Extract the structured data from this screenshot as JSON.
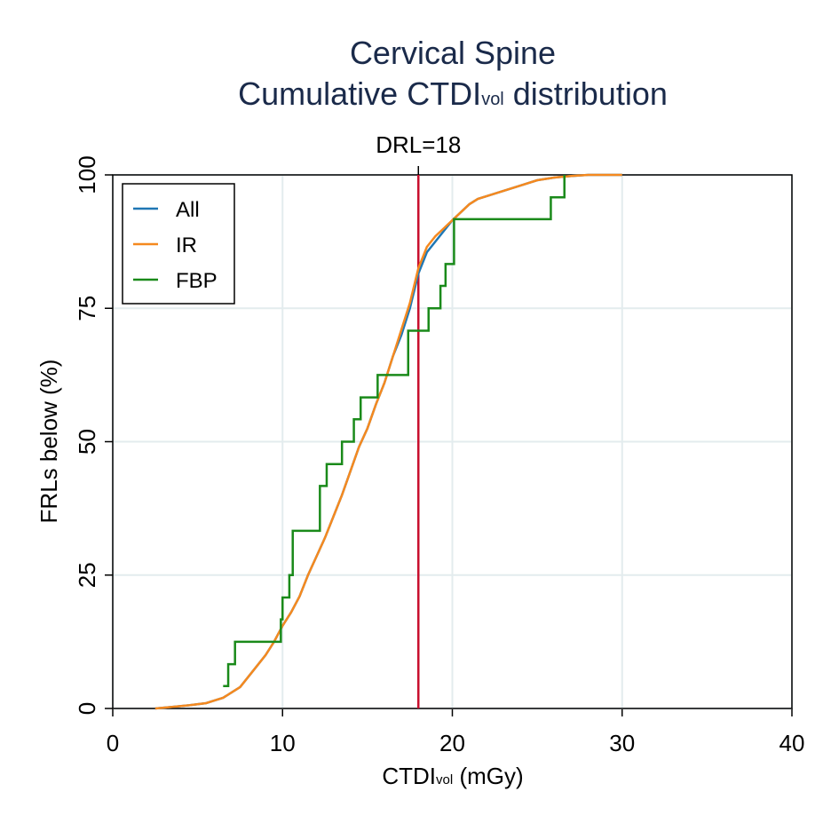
{
  "chart_data": {
    "type": "line",
    "title": [
      "Cervical Spine",
      {
        "main": "Cumulative CTDI",
        "sub": "vol",
        "rest": " distribution"
      }
    ],
    "x_label": {
      "main": "CTDI",
      "sub": "vol",
      "rest": " (mGy)"
    },
    "y_label": "FRLs below (%)",
    "xlim": [
      0,
      40
    ],
    "xticks": [
      0,
      10,
      20,
      30,
      40
    ],
    "ylim": [
      0,
      100
    ],
    "yticks": [
      0,
      25,
      50,
      75,
      100
    ],
    "grid": true,
    "legend": "top-left",
    "reference_line": {
      "x": 18,
      "label": "DRL=18",
      "color": "#c8102e"
    },
    "series": [
      {
        "name": "All",
        "color": "#1f77b4",
        "step": false,
        "x": [
          2.5,
          3.5,
          4.5,
          5.5,
          6,
          6.5,
          7,
          7.5,
          8,
          8.5,
          9,
          9.5,
          10,
          10.5,
          11,
          11.5,
          12,
          12.5,
          13,
          13.5,
          14,
          14.5,
          15,
          15.5,
          16,
          16.5,
          17,
          17.5,
          18,
          18.5,
          19,
          19.5,
          20,
          20.5,
          21,
          21.5,
          22,
          23,
          24,
          25,
          26,
          27,
          28,
          30
        ],
        "values": [
          0,
          0.3,
          0.6,
          1,
          1.5,
          2,
          3,
          4,
          6,
          8,
          10,
          12.5,
          15.5,
          18,
          21,
          25,
          28.5,
          32,
          36,
          40,
          44.5,
          49,
          52.5,
          57,
          61,
          66,
          70,
          75,
          81.5,
          85.5,
          87.5,
          89.5,
          91.5,
          93,
          94.5,
          95.5,
          96,
          97,
          98,
          99,
          99.5,
          99.8,
          100,
          100
        ]
      },
      {
        "name": "IR",
        "color": "#f5891f",
        "step": false,
        "x": [
          2.5,
          3.5,
          4.5,
          5.5,
          6,
          6.5,
          7,
          7.5,
          8,
          8.5,
          9,
          9.5,
          10,
          10.5,
          11,
          11.5,
          12,
          12.5,
          13,
          13.5,
          14,
          14.5,
          15,
          15.5,
          16,
          16.5,
          17,
          17.5,
          18,
          18.5,
          19,
          19.5,
          20,
          20.5,
          21,
          21.5,
          22,
          23,
          24,
          25,
          26,
          27,
          28,
          30
        ],
        "values": [
          0,
          0.3,
          0.6,
          1,
          1.5,
          2,
          3,
          4,
          6,
          8,
          10,
          12.5,
          15.5,
          18,
          21,
          25,
          28.5,
          32,
          36,
          40,
          44.5,
          49,
          52.5,
          57,
          61,
          66,
          71,
          76,
          82.5,
          86.5,
          88.5,
          90,
          91.5,
          93,
          94.5,
          95.5,
          96,
          97,
          98,
          99,
          99.5,
          99.8,
          100,
          100
        ]
      },
      {
        "name": "FBP",
        "color": "#1a8a1a",
        "step": true,
        "x": [
          6.5,
          6.8,
          7.2,
          9.9,
          10.0,
          10.4,
          10.6,
          12.2,
          12.6,
          13.5,
          14.2,
          14.6,
          15.6,
          17.4,
          18.6,
          19.3,
          19.6,
          20.1,
          25.8,
          26.6
        ],
        "values": [
          4.2,
          8.3,
          12.5,
          16.7,
          20.8,
          25,
          33.3,
          41.7,
          45.8,
          50,
          54.2,
          58.3,
          62.5,
          70.8,
          75,
          79.2,
          83.3,
          91.7,
          95.8,
          100
        ]
      }
    ]
  }
}
